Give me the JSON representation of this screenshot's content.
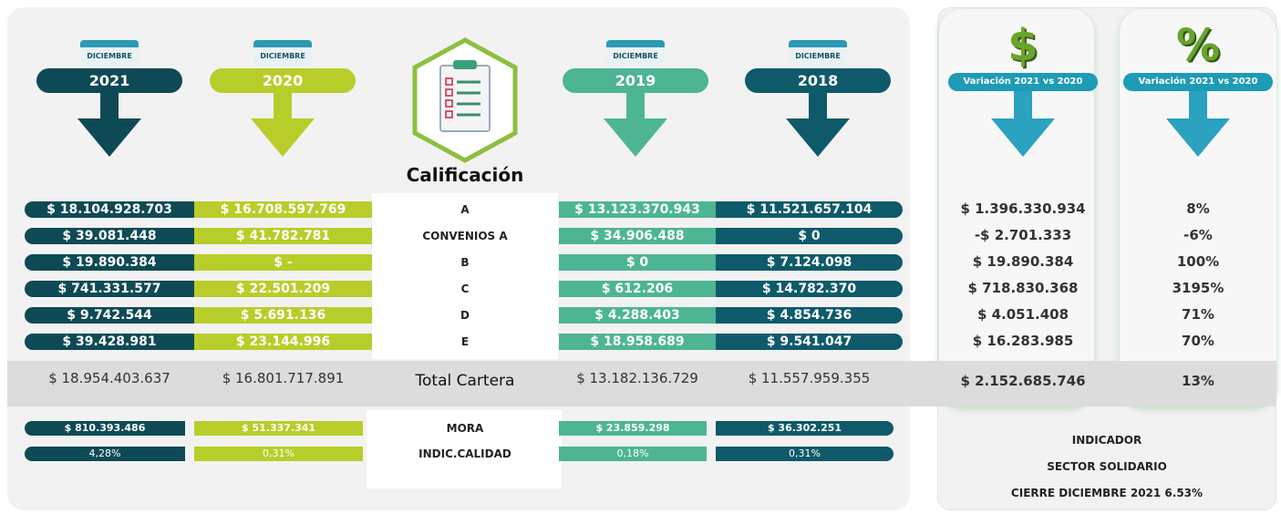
{
  "columns": [
    {
      "month": "DICIEMBRE",
      "year": "2021",
      "color": "#0e4a55",
      "values": [
        "$ 18.104.928.703",
        "$ 39.081.448",
        "$ 19.890.384",
        "$ 741.331.577",
        "$ 9.742.544",
        "$ 39.428.981"
      ],
      "total": "$ 18.954.403.637",
      "mora": "$ 810.393.486",
      "indic": "4,28%"
    },
    {
      "month": "DICIEMBRE",
      "year": "2020",
      "color": "#b9cd2a",
      "values": [
        "$ 16.708.597.769",
        "$ 41.782.781",
        "$ -",
        "$ 22.501.209",
        "$ 5.691.136",
        "$ 23.144.996"
      ],
      "total": "$ 16.801.717.891",
      "mora": "$ 51.337.341",
      "indic": "0,31%"
    },
    {
      "month": "DICIEMBRE",
      "year": "2019",
      "color": "#4db594",
      "values": [
        "$ 13.123.370.943",
        "$ 34.906.488",
        "$ 0",
        "$ 612.206",
        "$ 4.288.403",
        "$ 18.958.689"
      ],
      "total": "$ 13.182.136.729",
      "mora": "$ 23.859.298",
      "indic": "0,18%"
    },
    {
      "month": "DICIEMBRE",
      "year": "2018",
      "color": "#0e5a6a",
      "values": [
        "$ 11.521.657.104",
        "$ 0",
        "$ 7.124.098",
        "$ 14.782.370",
        "$ 4.854.736",
        "$ 9.541.047"
      ],
      "total": "$ 11.557.959.355",
      "mora": "$ 36.302.251",
      "indic": "0,31%"
    }
  ],
  "center": {
    "title": "Calificación",
    "rows": [
      "A",
      "CONVENIOS A",
      "B",
      "C",
      "D",
      "E"
    ],
    "total": "Total Cartera",
    "mora": "MORA",
    "indic": "INDIC.CALIDAD"
  },
  "variation": [
    {
      "icon": "$",
      "header": "Variación 2021 vs 2020",
      "values": [
        "$ 1.396.330.934",
        "-$ 2.701.333",
        "$ 19.890.384",
        "$ 718.830.368",
        "$ 4.051.408",
        "$ 16.283.985"
      ],
      "total": "$ 2.152.685.746"
    },
    {
      "icon": "%",
      "header": "Variación 2021 vs 2020",
      "values": [
        "8%",
        "-6%",
        "100%",
        "3195%",
        "71%",
        "70%"
      ],
      "total": "13%"
    }
  ],
  "indicator": [
    "INDICADOR",
    "SECTOR SOLIDARIO",
    "CIERRE DICIEMBRE 2021 6.53%"
  ]
}
